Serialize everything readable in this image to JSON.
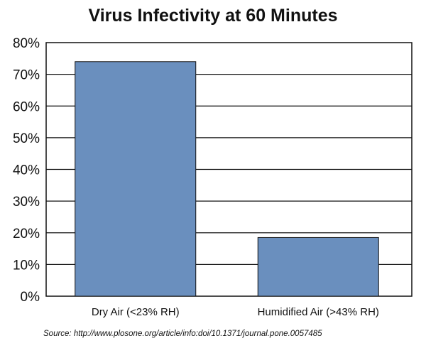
{
  "chart_data": {
    "type": "bar",
    "title": "Virus Infectivity at 60 Minutes",
    "categories": [
      "Dry Air (<23% RH)",
      "Humidified Air (>43% RH)"
    ],
    "values": [
      74,
      18.5
    ],
    "ylim": [
      0,
      80
    ],
    "yticks": [
      0,
      10,
      20,
      30,
      40,
      50,
      60,
      70,
      80
    ],
    "ytick_labels": [
      "0%",
      "10%",
      "20%",
      "30%",
      "40%",
      "50%",
      "60%",
      "70%",
      "80%"
    ],
    "xlabel": "",
    "ylabel": "",
    "grid": true,
    "bar_color": "#6a8fbe",
    "source": "Source: http://www.plosone.org/article/info:doi/10.1371/journal.pone.0057485"
  }
}
